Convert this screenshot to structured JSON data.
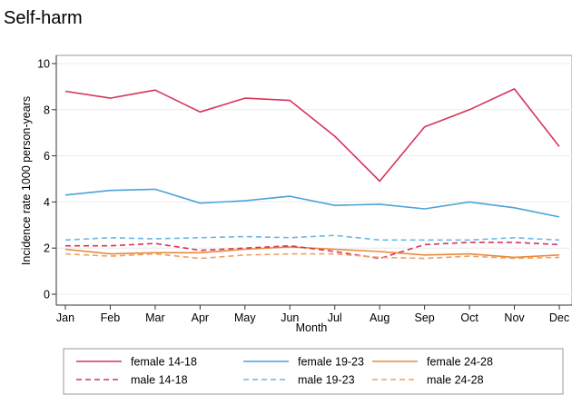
{
  "chart_data": {
    "type": "line",
    "title": "Self-harm",
    "xlabel": "Month",
    "ylabel": "Incidence rate 1000 person-years",
    "ylim": [
      0,
      10
    ],
    "yticks": [
      0,
      2,
      4,
      6,
      8,
      10
    ],
    "categories": [
      "Jan",
      "Feb",
      "Mar",
      "Apr",
      "May",
      "Jun",
      "Jul",
      "Aug",
      "Sep",
      "Oct",
      "Nov",
      "Dec"
    ],
    "grid": "horizontal",
    "legend_position": "bottom",
    "series": [
      {
        "name": "female 14-18",
        "color": "#d6345a",
        "dash": "solid",
        "values": [
          8.8,
          8.5,
          8.85,
          7.9,
          8.5,
          8.4,
          6.85,
          4.9,
          7.25,
          8.0,
          8.9,
          6.4
        ]
      },
      {
        "name": "female 19-23",
        "color": "#4ba3d8",
        "dash": "solid",
        "values": [
          4.3,
          4.5,
          4.55,
          3.95,
          4.05,
          4.25,
          3.85,
          3.9,
          3.7,
          4.0,
          3.75,
          3.35
        ]
      },
      {
        "name": "female 24-28",
        "color": "#e88a3a",
        "dash": "solid",
        "values": [
          1.95,
          1.75,
          1.8,
          1.8,
          1.95,
          2.05,
          1.95,
          1.85,
          1.7,
          1.75,
          1.6,
          1.7
        ]
      },
      {
        "name": "male 14-18",
        "color": "#d6345a",
        "dash": "dashed",
        "values": [
          2.1,
          2.1,
          2.2,
          1.9,
          2.0,
          2.1,
          1.85,
          1.55,
          2.15,
          2.25,
          2.25,
          2.15
        ]
      },
      {
        "name": "male 19-23",
        "color": "#6ab8e6",
        "dash": "dashed",
        "values": [
          2.35,
          2.45,
          2.4,
          2.45,
          2.5,
          2.45,
          2.55,
          2.35,
          2.35,
          2.35,
          2.45,
          2.35
        ]
      },
      {
        "name": "male 24-28",
        "color": "#f0a060",
        "dash": "dashed",
        "values": [
          1.75,
          1.65,
          1.75,
          1.55,
          1.7,
          1.75,
          1.75,
          1.6,
          1.55,
          1.65,
          1.55,
          1.6
        ]
      }
    ]
  }
}
